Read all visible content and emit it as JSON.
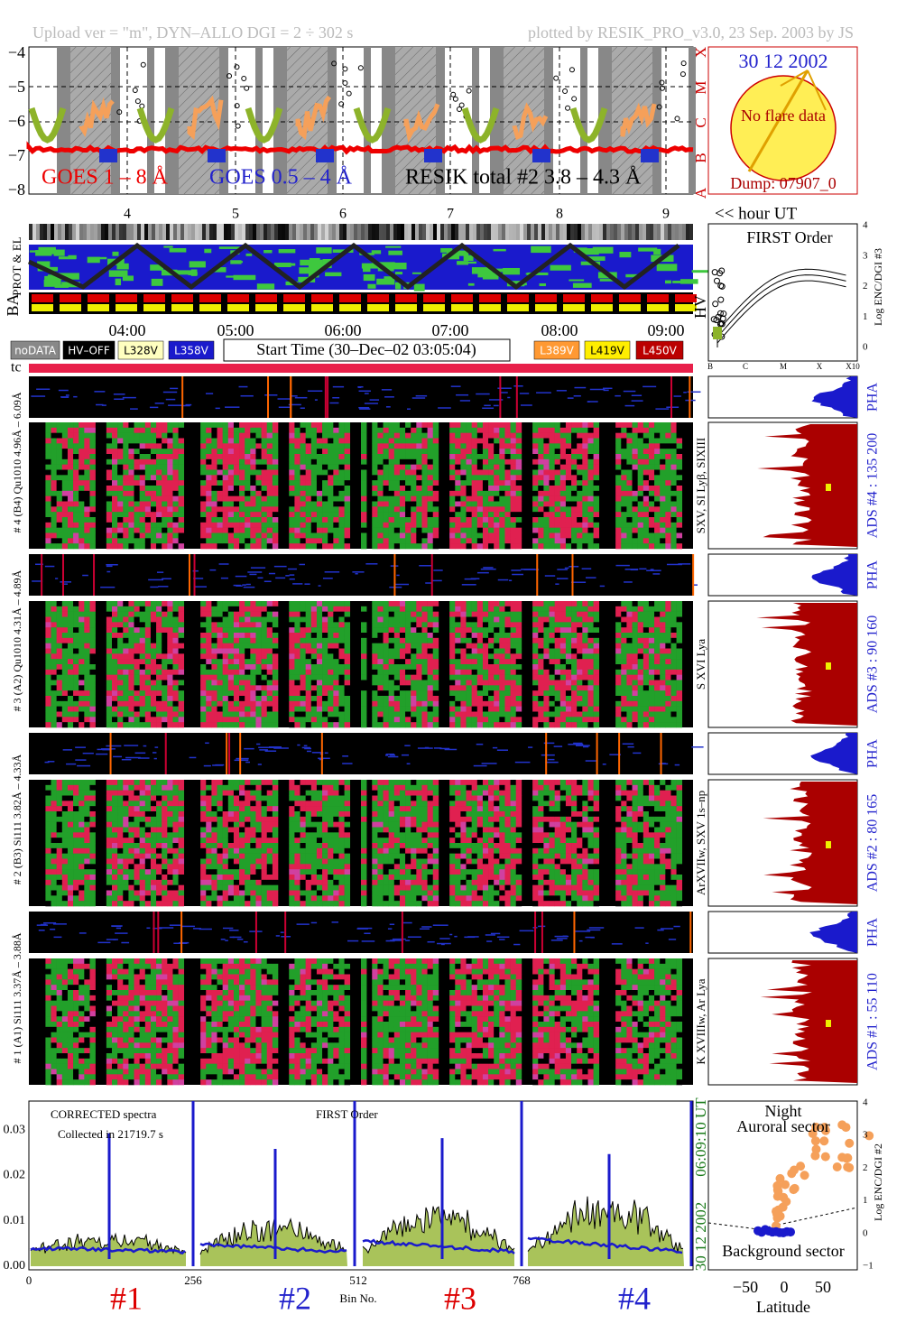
{
  "header": {
    "left": "Upload ver = \"m\", DYN–ALLO DGI =   2 ÷ 302 s",
    "right": "plotted by RESIK_PRO_v3.0, 23 Sep. 2003 by JS"
  },
  "goes": {
    "yticks": [
      "−4",
      "−5",
      "−6",
      "−7",
      "−8"
    ],
    "classes": [
      "X",
      "M",
      "C",
      "B",
      "A"
    ],
    "legend": [
      "GOES 1 – 8 Å",
      "GOES 0.5 – 4 Å",
      "RESIK total #2  3.8 – 4.3 Å"
    ]
  },
  "sun": {
    "date": "30 12 2002",
    "note": "No flare data",
    "dump": "Dump: 07907_0"
  },
  "hours": {
    "ticks": [
      "4",
      "5",
      "6",
      "7",
      "8",
      "9"
    ],
    "label": "<< hour UT"
  },
  "side_labels": {
    "prot": "PROT & EL",
    "ba": "BA",
    "hv": "HV",
    "tc": "tc"
  },
  "first_order": {
    "title": "FIRST Order",
    "ylabel": "Log ENC/DGI #3",
    "yticks": [
      "0",
      "1",
      "2",
      "3",
      "4"
    ],
    "xticks": [
      "B",
      "C",
      "M",
      "X",
      "X10"
    ]
  },
  "time_axis": {
    "ticks": [
      "04:00",
      "05:00",
      "06:00",
      "07:00",
      "08:00",
      "09:00"
    ]
  },
  "legend": {
    "items": [
      "noDATA",
      "HV–OFF",
      "L328V",
      "L358V",
      "L389V",
      "L419V",
      "L450V"
    ],
    "start": "Start Time (30–Dec–02 03:05:04)"
  },
  "channels": [
    {
      "label": "# 4 (B4) Qu1010  4.96Å – 6.09Å",
      "lines": "SXV, SI Lyβ, SIXIII",
      "ads": "ADS #4 :   135 200",
      "pha": "PHA"
    },
    {
      "label": "# 3 (A2) Qu1010  4.31Å – 4.89Å",
      "lines": "S XVI Lya",
      "ads": "ADS #3 :   90 160",
      "pha": "PHA"
    },
    {
      "label": "# 2 (B3) Si111  3.82Å – 4.33Å",
      "lines": "ArXVIIw, SXV 1s–np",
      "ads": "ADS #2 :   80 165",
      "pha": "PHA"
    },
    {
      "label": "# 1 (A1) Si111  3.37Å – 3.88Å",
      "lines": "K XVIIIw, Ar Lya",
      "ads": "ADS #1 :   55 110",
      "pha": "PHA"
    }
  ],
  "spectrum": {
    "yticks": [
      "0.00",
      "0.01",
      "0.02",
      "0.03"
    ],
    "notes": [
      "CORRECTED spectra",
      "Collected in 21719.7 s"
    ],
    "order": "FIRST Order",
    "xticks": [
      "0",
      "256",
      "512",
      "768"
    ],
    "xlabel": "Bin No.",
    "time": "06:09:10 UT",
    "date": "30 12 2002",
    "channels": [
      "#1",
      "#2",
      "#3",
      "#4"
    ]
  },
  "latitude": {
    "title": [
      "Night",
      "Auroral sector"
    ],
    "bottom": "Background sector",
    "xlabel": "Latitude",
    "xticks": [
      "−50",
      "0",
      "50"
    ],
    "yticks": [
      "−1",
      "0",
      "1",
      "2",
      "3",
      "4"
    ],
    "ylabel": "Log ENC/DGI #2"
  }
}
